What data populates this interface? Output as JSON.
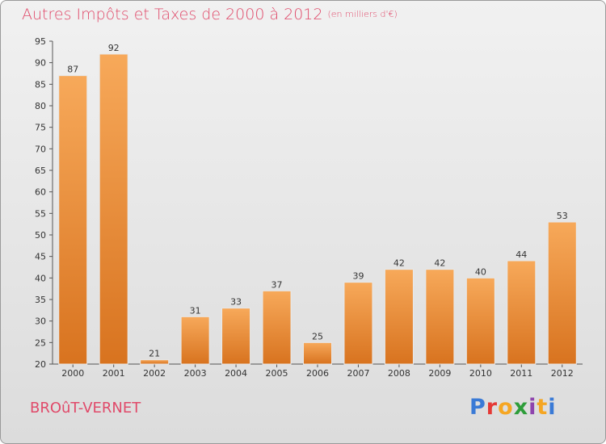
{
  "title": "Autres Impôts et Taxes de 2000 à 2012",
  "unit": "(en milliers d'€)",
  "commune": "BROûT-VERNET",
  "logo": {
    "text": "Proxiti",
    "colors": [
      "#3a7ad6",
      "#e53935",
      "#f5a623",
      "#2e9d3a",
      "#8e44ad",
      "#f5a623",
      "#3a7ad6"
    ]
  },
  "colors": {
    "bar_top": "#f7a95a",
    "bar_bottom": "#d8731f",
    "title": "#e04a6a"
  },
  "chart_data": {
    "type": "bar",
    "title": "Autres Impôts et Taxes de 2000 à 2012",
    "xlabel": "",
    "ylabel": "",
    "categories": [
      "2000",
      "2001",
      "2002",
      "2003",
      "2004",
      "2005",
      "2006",
      "2007",
      "2008",
      "2009",
      "2010",
      "2011",
      "2012"
    ],
    "values": [
      87,
      92,
      21,
      31,
      33,
      37,
      25,
      39,
      42,
      42,
      40,
      44,
      53
    ],
    "ylim": [
      20,
      95
    ],
    "yticks": [
      20,
      25,
      30,
      35,
      40,
      45,
      50,
      55,
      60,
      65,
      70,
      75,
      80,
      85,
      90,
      95
    ],
    "grid": false,
    "legend": "none",
    "data_labels": true
  }
}
